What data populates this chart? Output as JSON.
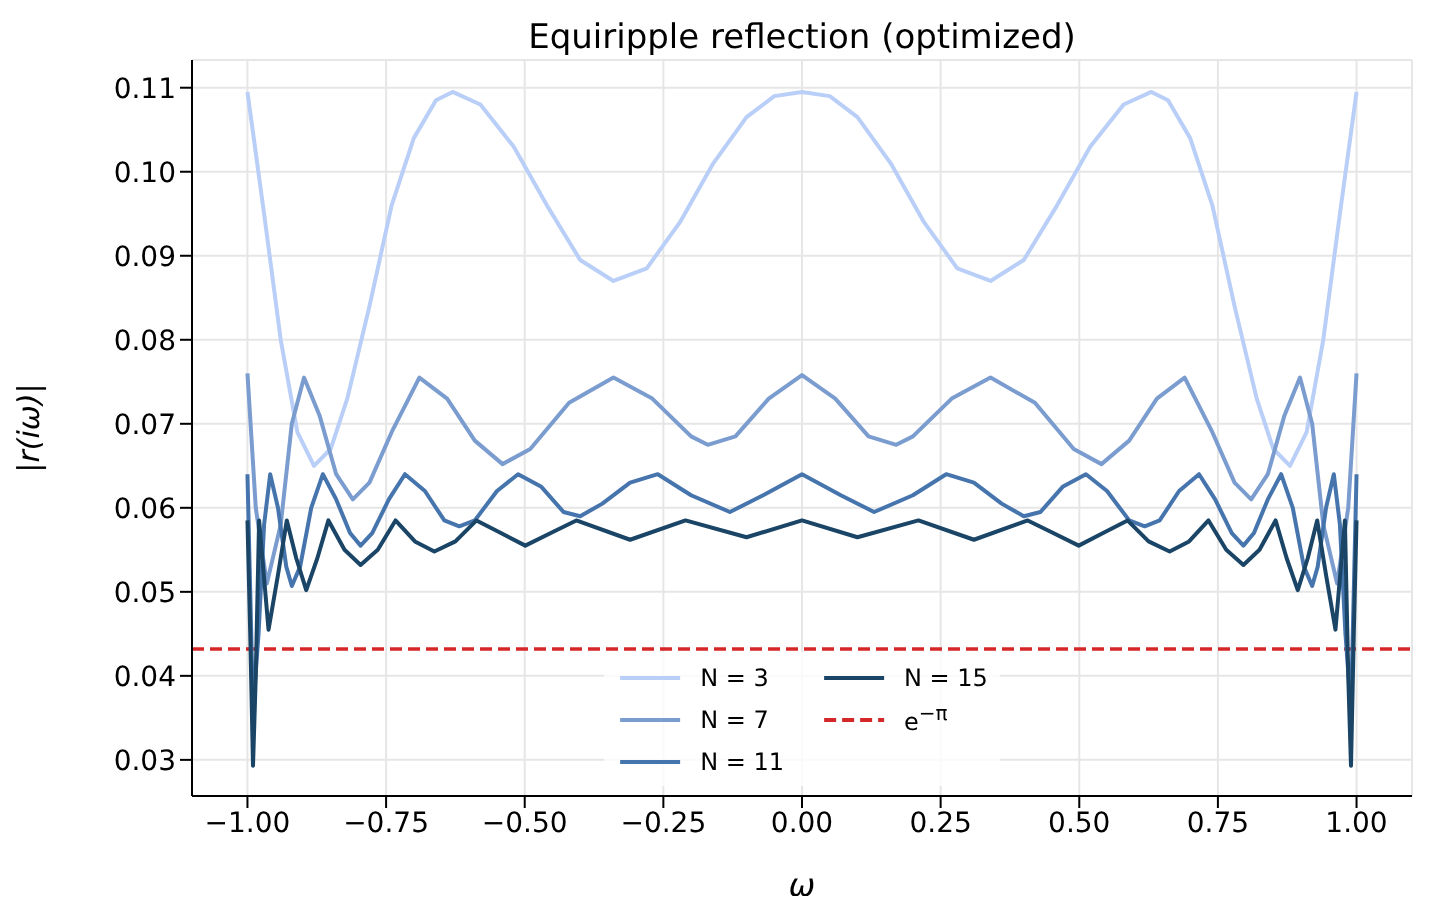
{
  "chart_data": {
    "type": "line",
    "title": "Equiripple reflection (optimized)",
    "xlabel": "ω",
    "ylabel": "|r(iω)|",
    "xlim": [
      -1.1,
      1.1
    ],
    "ylim": [
      0.0257,
      0.1133
    ],
    "xticks": [
      {
        "value": -1,
        "label": "−1.00"
      },
      {
        "value": -0.75,
        "label": "−0.75"
      },
      {
        "value": -0.5,
        "label": "−0.50"
      },
      {
        "value": -0.25,
        "label": "−0.25"
      },
      {
        "value": 0,
        "label": "0.00"
      },
      {
        "value": 0.25,
        "label": "0.25"
      },
      {
        "value": 0.5,
        "label": "0.50"
      },
      {
        "value": 0.75,
        "label": "0.75"
      },
      {
        "value": 1,
        "label": "1.00"
      }
    ],
    "yticks": [
      {
        "value": 0.03,
        "label": "0.03"
      },
      {
        "value": 0.04,
        "label": "0.04"
      },
      {
        "value": 0.05,
        "label": "0.05"
      },
      {
        "value": 0.06,
        "label": "0.06"
      },
      {
        "value": 0.07,
        "label": "0.07"
      },
      {
        "value": 0.08,
        "label": "0.08"
      },
      {
        "value": 0.09,
        "label": "0.09"
      },
      {
        "value": 0.1,
        "label": "0.10"
      },
      {
        "value": 0.11,
        "label": "0.11"
      }
    ],
    "grid": true,
    "legend": "bottom",
    "marker": "none",
    "line_style": "solid",
    "series": [
      {
        "name": "N = 3",
        "color": "#b9cff7",
        "x": [
          -1,
          -0.97,
          -0.94,
          -0.91,
          -0.88,
          -0.85,
          -0.82,
          -0.78,
          -0.74,
          -0.7,
          -0.66,
          -0.63,
          -0.58,
          -0.52,
          -0.46,
          -0.4,
          -0.34,
          -0.28,
          -0.22,
          -0.16,
          -0.1,
          -0.05,
          0,
          0.05,
          0.1,
          0.16,
          0.22,
          0.28,
          0.34,
          0.4,
          0.46,
          0.52,
          0.58,
          0.63,
          0.66,
          0.7,
          0.74,
          0.78,
          0.82,
          0.85,
          0.88,
          0.91,
          0.94,
          0.97,
          1
        ],
        "values": [
          0.1095,
          0.095,
          0.08,
          0.069,
          0.065,
          0.067,
          0.073,
          0.084,
          0.096,
          0.104,
          0.1085,
          0.1095,
          0.108,
          0.103,
          0.096,
          0.0895,
          0.087,
          0.0885,
          0.094,
          0.101,
          0.1065,
          0.109,
          0.1095,
          0.109,
          0.1065,
          0.101,
          0.094,
          0.0885,
          0.087,
          0.0895,
          0.096,
          0.103,
          0.108,
          0.1095,
          0.1085,
          0.104,
          0.096,
          0.084,
          0.073,
          0.067,
          0.065,
          0.069,
          0.08,
          0.095,
          0.1095
        ]
      },
      {
        "name": "N = 7",
        "color": "#7b9ccf",
        "x": [
          -1,
          -0.985,
          -0.965,
          -0.94,
          -0.92,
          -0.898,
          -0.87,
          -0.84,
          -0.81,
          -0.78,
          -0.74,
          -0.69,
          -0.64,
          -0.59,
          -0.54,
          -0.49,
          -0.42,
          -0.34,
          -0.27,
          -0.2,
          -0.17,
          -0.12,
          -0.06,
          0,
          0.06,
          0.12,
          0.17,
          0.2,
          0.27,
          0.34,
          0.42,
          0.49,
          0.54,
          0.59,
          0.64,
          0.69,
          0.74,
          0.78,
          0.81,
          0.84,
          0.87,
          0.898,
          0.92,
          0.94,
          0.965,
          0.985,
          1
        ],
        "values": [
          0.076,
          0.06,
          0.051,
          0.058,
          0.07,
          0.0755,
          0.071,
          0.064,
          0.061,
          0.063,
          0.069,
          0.0755,
          0.073,
          0.068,
          0.0652,
          0.067,
          0.0725,
          0.0755,
          0.073,
          0.0685,
          0.0675,
          0.0685,
          0.073,
          0.0758,
          0.073,
          0.0685,
          0.0675,
          0.0685,
          0.073,
          0.0755,
          0.0725,
          0.067,
          0.0652,
          0.068,
          0.073,
          0.0755,
          0.069,
          0.063,
          0.061,
          0.064,
          0.071,
          0.0755,
          0.07,
          0.058,
          0.051,
          0.06,
          0.076
        ]
      },
      {
        "name": "N = 11",
        "color": "#4675ad",
        "x": [
          -1,
          -0.995,
          -0.99,
          -0.98,
          -0.97,
          -0.959,
          -0.945,
          -0.93,
          -0.92,
          -0.905,
          -0.885,
          -0.864,
          -0.84,
          -0.815,
          -0.796,
          -0.775,
          -0.745,
          -0.716,
          -0.68,
          -0.645,
          -0.618,
          -0.59,
          -0.55,
          -0.512,
          -0.47,
          -0.43,
          -0.4,
          -0.36,
          -0.31,
          -0.26,
          -0.2,
          -0.13,
          -0.07,
          0,
          0.07,
          0.13,
          0.2,
          0.26,
          0.31,
          0.36,
          0.4,
          0.43,
          0.47,
          0.512,
          0.55,
          0.59,
          0.618,
          0.645,
          0.68,
          0.716,
          0.745,
          0.775,
          0.796,
          0.815,
          0.84,
          0.864,
          0.885,
          0.905,
          0.92,
          0.93,
          0.945,
          0.959,
          0.97,
          0.98,
          0.99,
          0.995,
          1
        ],
        "values": [
          0.064,
          0.05,
          0.036,
          0.045,
          0.058,
          0.064,
          0.06,
          0.053,
          0.0507,
          0.053,
          0.06,
          0.064,
          0.061,
          0.057,
          0.0555,
          0.057,
          0.061,
          0.064,
          0.062,
          0.0585,
          0.0578,
          0.0585,
          0.062,
          0.064,
          0.0625,
          0.0595,
          0.059,
          0.0605,
          0.063,
          0.064,
          0.0615,
          0.0595,
          0.0615,
          0.064,
          0.0615,
          0.0595,
          0.0615,
          0.064,
          0.063,
          0.0605,
          0.059,
          0.0595,
          0.0625,
          0.064,
          0.062,
          0.0585,
          0.0578,
          0.0585,
          0.062,
          0.064,
          0.061,
          0.057,
          0.0555,
          0.057,
          0.061,
          0.064,
          0.06,
          0.053,
          0.0507,
          0.053,
          0.06,
          0.064,
          0.058,
          0.045,
          0.036,
          0.05,
          0.064
        ]
      },
      {
        "name": "N = 15",
        "color": "#1a4566",
        "x": [
          -1,
          -0.995,
          -0.99,
          -0.985,
          -0.979,
          -0.962,
          -0.945,
          -0.929,
          -0.912,
          -0.894,
          -0.874,
          -0.854,
          -0.825,
          -0.796,
          -0.765,
          -0.733,
          -0.698,
          -0.663,
          -0.625,
          -0.587,
          -0.543,
          -0.499,
          -0.453,
          -0.407,
          -0.31,
          -0.21,
          -0.1,
          0,
          0.1,
          0.21,
          0.31,
          0.407,
          0.453,
          0.499,
          0.543,
          0.587,
          0.625,
          0.663,
          0.698,
          0.733,
          0.765,
          0.796,
          0.825,
          0.854,
          0.874,
          0.894,
          0.912,
          0.929,
          0.945,
          0.962,
          0.979,
          0.985,
          0.99,
          0.995,
          1
        ],
        "values": [
          0.0585,
          0.045,
          0.0293,
          0.04,
          0.0585,
          0.0455,
          0.052,
          0.0585,
          0.054,
          0.0502,
          0.054,
          0.0585,
          0.055,
          0.0532,
          0.055,
          0.0585,
          0.056,
          0.0548,
          0.056,
          0.0585,
          0.057,
          0.0555,
          0.057,
          0.0585,
          0.0562,
          0.0585,
          0.0565,
          0.0585,
          0.0565,
          0.0585,
          0.0562,
          0.0585,
          0.057,
          0.0555,
          0.057,
          0.0585,
          0.056,
          0.0548,
          0.056,
          0.0585,
          0.055,
          0.0532,
          0.055,
          0.0585,
          0.054,
          0.0502,
          0.054,
          0.0585,
          0.052,
          0.0455,
          0.0585,
          0.04,
          0.0293,
          0.045,
          0.0585
        ]
      }
    ],
    "ref_lines": [
      {
        "axis": "y",
        "value": 0.0432,
        "label": "e$^{−π}$",
        "color": "#d62728",
        "line_style": "dashed"
      }
    ]
  }
}
